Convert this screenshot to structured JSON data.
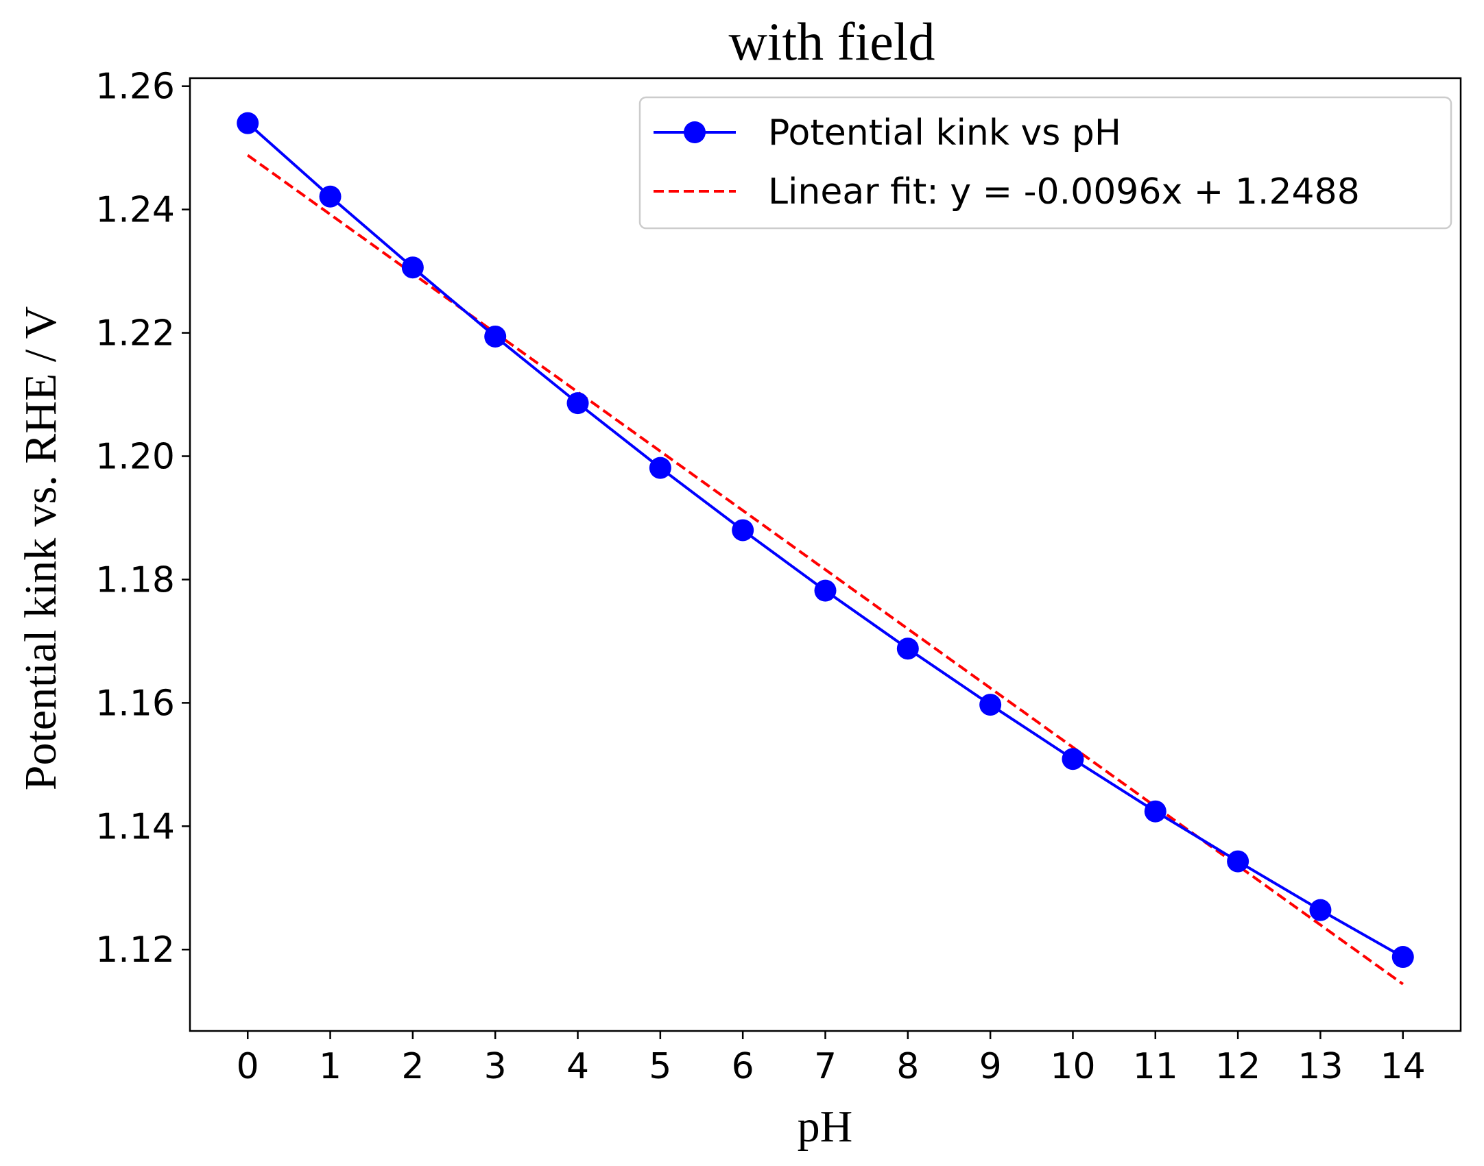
{
  "chart_data": {
    "type": "line",
    "title": "with field",
    "xlabel": "pH",
    "ylabel": "Potential kink vs. RHE / V",
    "xlim": [
      -0.7,
      14.7
    ],
    "ylim": [
      1.1068,
      1.2613
    ],
    "x_ticks": [
      "0",
      "1",
      "2",
      "3",
      "4",
      "5",
      "6",
      "7",
      "8",
      "9",
      "10",
      "11",
      "12",
      "13",
      "14"
    ],
    "y_ticks": [
      "1.12",
      "1.14",
      "1.16",
      "1.18",
      "1.20",
      "1.22",
      "1.24",
      "1.26"
    ],
    "x_tick_values": [
      0,
      1,
      2,
      3,
      4,
      5,
      6,
      7,
      8,
      9,
      10,
      11,
      12,
      13,
      14
    ],
    "y_tick_values": [
      1.12,
      1.14,
      1.16,
      1.18,
      1.2,
      1.22,
      1.24,
      1.26
    ],
    "grid": false,
    "legend_position": "top-right",
    "series": [
      {
        "name": "Potential kink vs pH",
        "color": "#0000ff",
        "style": "solid",
        "marker": "circle",
        "x": [
          0,
          1,
          2,
          3,
          4,
          5,
          6,
          7,
          8,
          9,
          10,
          11,
          12,
          13,
          14
        ],
        "y": [
          1.254,
          1.2421,
          1.2306,
          1.2194,
          1.2086,
          1.1981,
          1.188,
          1.1782,
          1.1688,
          1.1597,
          1.1509,
          1.1424,
          1.1343,
          1.1264,
          1.1188
        ]
      },
      {
        "name": "Linear fit: y = -0.0096x + 1.2488",
        "color": "#ff0000",
        "style": "dashed",
        "marker": "none",
        "x": [
          0,
          14
        ],
        "y": [
          1.2488,
          1.1144
        ]
      }
    ]
  }
}
